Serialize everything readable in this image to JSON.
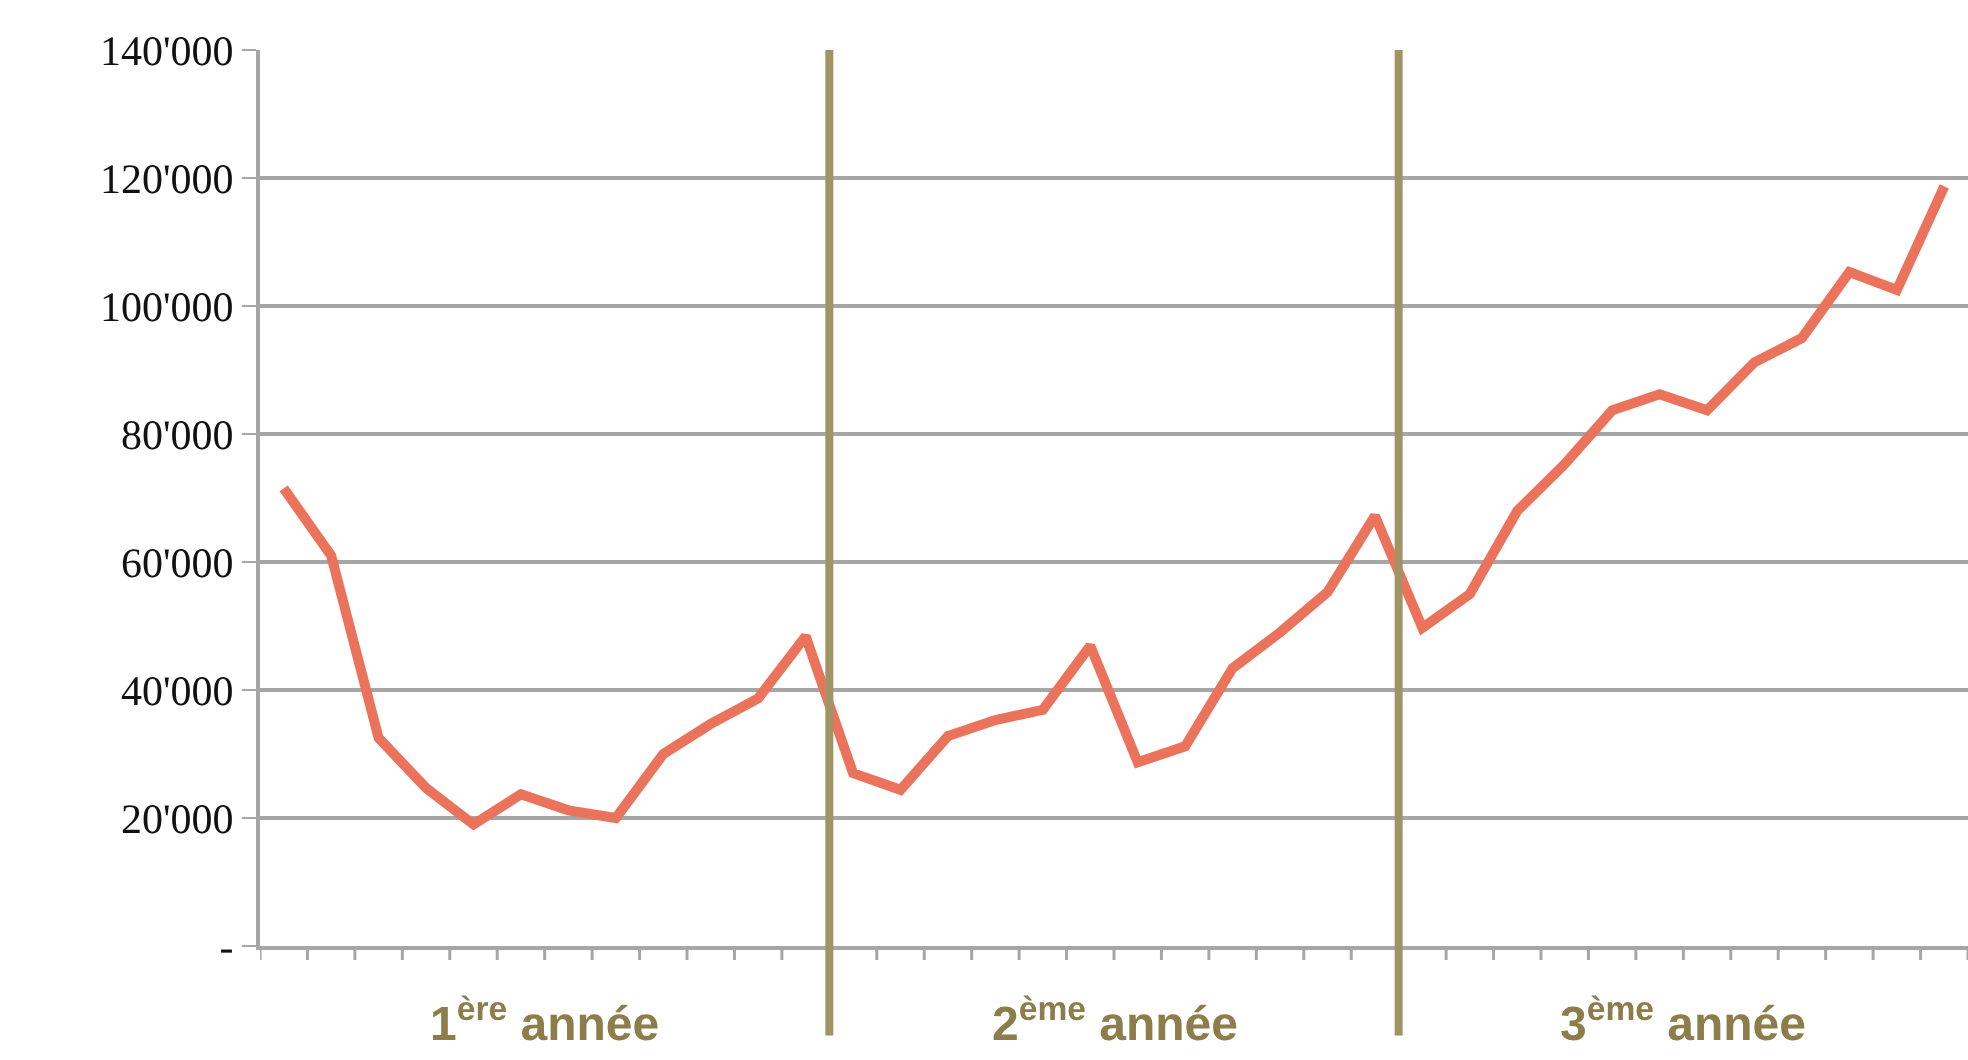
{
  "chart_data": {
    "type": "line",
    "categories": [
      null,
      null,
      null,
      null,
      null,
      null,
      null,
      null,
      null,
      null,
      null,
      null,
      null,
      null,
      null,
      null,
      null,
      null,
      null,
      null,
      null,
      null,
      null,
      null,
      null,
      null,
      null,
      null,
      null,
      null,
      null,
      null,
      null,
      null,
      null,
      null
    ],
    "series": [
      {
        "color": "#ec735b",
        "values": [
          71500,
          61000,
          32500,
          24700,
          19000,
          23700,
          21200,
          20000,
          30000,
          34700,
          38700,
          48400,
          27000,
          24400,
          32800,
          35300,
          36900,
          46900,
          28700,
          31200,
          43400,
          49000,
          55300,
          67200,
          49700,
          55000,
          68000,
          75300,
          83700,
          86200,
          83700,
          91200,
          95000,
          105300,
          102500,
          118700
        ]
      }
    ],
    "ylim": [
      0,
      140000
    ],
    "yticks": [
      {
        "value": 0,
        "label": "-"
      },
      {
        "value": 20000,
        "label": "20'000"
      },
      {
        "value": 40000,
        "label": "40'000"
      },
      {
        "value": 60000,
        "label": "60'000"
      },
      {
        "value": 80000,
        "label": "80'000"
      },
      {
        "value": 100000,
        "label": "100'000"
      },
      {
        "value": 120000,
        "label": "120'000"
      },
      {
        "value": 140000,
        "label": "140'000"
      }
    ],
    "tick_labels": "y",
    "grid": "y",
    "marker": "none",
    "line_style": "solid",
    "annotations": [
      "1$^{ère}$ année",
      "2$^{ème}$ année",
      "3$^{ème}$ année"
    ]
  }
}
